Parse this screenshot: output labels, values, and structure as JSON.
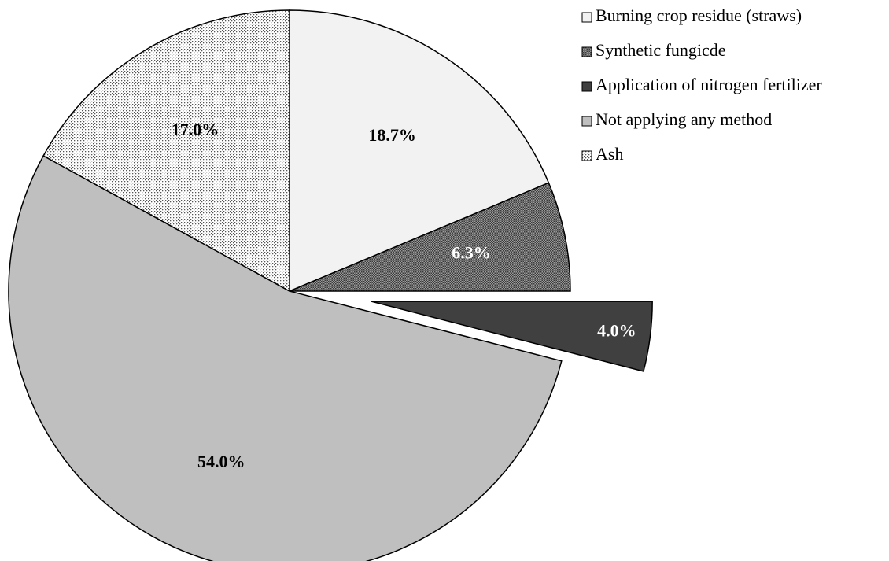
{
  "chart_data": {
    "type": "pie",
    "title": "",
    "slices": [
      {
        "name": "Burning crop residue (straws)",
        "value": 18.7,
        "label": "18.7%",
        "color": "#f2f2f2",
        "pattern": "none",
        "exploded": false
      },
      {
        "name": "Synthetic fungicde",
        "value": 6.3,
        "label": "6.3%",
        "color": "#7f7f7f",
        "pattern": "dense-dots",
        "exploded": false
      },
      {
        "name": "Application of nitrogen fertilizer",
        "value": 4.0,
        "label": "4.0%",
        "color": "#404040",
        "pattern": "none",
        "exploded": true
      },
      {
        "name": "Not applying any method",
        "value": 54.0,
        "label": "54.0%",
        "color": "#bfbfbf",
        "pattern": "none",
        "exploded": false
      },
      {
        "name": "Ash",
        "value": 17.0,
        "label": "17.0%",
        "color": "#ffffff",
        "pattern": "sparse-dots",
        "exploded": false
      }
    ],
    "legend_position": "top-right"
  }
}
